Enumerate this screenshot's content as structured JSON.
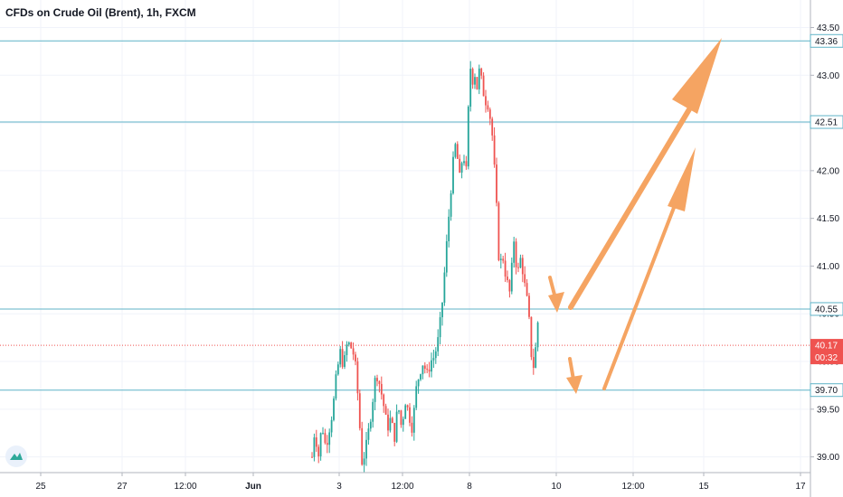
{
  "chart_data": {
    "type": "candlestick",
    "title": "CFDs on Crude Oil (Brent), 1h, FXCM",
    "y_range": [
      38.93,
      43.59
    ],
    "y_ticks": [
      {
        "value": 43.5,
        "label": "43.50"
      },
      {
        "value": 43.0,
        "label": "43.00"
      },
      {
        "value": 42.5,
        "label": "42.50"
      },
      {
        "value": 42.0,
        "label": "42.00"
      },
      {
        "value": 41.5,
        "label": "41.50"
      },
      {
        "value": 41.0,
        "label": "41.00"
      },
      {
        "value": 40.5,
        "label": "40.50"
      },
      {
        "value": 40.0,
        "label": "40.00"
      },
      {
        "value": 39.5,
        "label": "39.50"
      },
      {
        "value": 39.0,
        "label": "39.00"
      }
    ],
    "x_range": [
      0,
      885
    ],
    "x_ticks": [
      {
        "value": 45,
        "label": "25"
      },
      {
        "value": 135,
        "label": "27"
      },
      {
        "value": 205,
        "label": "12:00"
      },
      {
        "value": 280,
        "label": "Jun"
      },
      {
        "value": 375,
        "label": "3"
      },
      {
        "value": 445,
        "label": "12:00"
      },
      {
        "value": 519,
        "label": "8"
      },
      {
        "value": 615,
        "label": "10"
      },
      {
        "value": 700,
        "label": "12:00"
      },
      {
        "value": 778,
        "label": "15"
      },
      {
        "value": 885,
        "label": "17"
      }
    ],
    "levels": [
      {
        "value": 43.36,
        "label": "43.36"
      },
      {
        "value": 42.51,
        "label": "42.51"
      },
      {
        "value": 40.55,
        "label": "40.55"
      },
      {
        "value": 39.7,
        "label": "39.70"
      }
    ],
    "current_price": {
      "value": 40.17,
      "label": "40.17",
      "countdown": "00:32"
    },
    "price_path": [
      [
        345,
        39.0
      ],
      [
        348,
        39.3
      ],
      [
        352,
        39.0
      ],
      [
        356,
        39.35
      ],
      [
        360,
        39.1
      ],
      [
        364,
        39.3
      ],
      [
        368,
        39.5
      ],
      [
        372,
        39.85
      ],
      [
        376,
        40.1
      ],
      [
        380,
        39.95
      ],
      [
        384,
        40.2
      ],
      [
        388,
        40.15
      ],
      [
        392,
        40.05
      ],
      [
        396,
        39.6
      ],
      [
        400,
        38.95
      ],
      [
        404,
        39.05
      ],
      [
        408,
        39.3
      ],
      [
        412,
        39.6
      ],
      [
        416,
        39.9
      ],
      [
        420,
        39.75
      ],
      [
        424,
        39.55
      ],
      [
        428,
        39.3
      ],
      [
        432,
        39.4
      ],
      [
        436,
        39.2
      ],
      [
        440,
        39.55
      ],
      [
        444,
        39.3
      ],
      [
        448,
        39.6
      ],
      [
        452,
        39.45
      ],
      [
        456,
        39.3
      ],
      [
        460,
        39.7
      ],
      [
        464,
        39.9
      ],
      [
        468,
        40.0
      ],
      [
        472,
        39.85
      ],
      [
        476,
        40.0
      ],
      [
        480,
        40.05
      ],
      [
        484,
        40.2
      ],
      [
        488,
        40.5
      ],
      [
        492,
        41.0
      ],
      [
        496,
        41.5
      ],
      [
        500,
        42.0
      ],
      [
        504,
        42.3
      ],
      [
        508,
        41.9
      ],
      [
        512,
        42.2
      ],
      [
        516,
        41.95
      ],
      [
        518,
        42.7
      ],
      [
        520,
        43.1
      ],
      [
        522,
        42.9
      ],
      [
        524,
        43.1
      ],
      [
        527,
        42.85
      ],
      [
        530,
        43.05
      ],
      [
        533,
        42.9
      ],
      [
        536,
        42.75
      ],
      [
        540,
        42.7
      ],
      [
        544,
        42.4
      ],
      [
        548,
        41.8
      ],
      [
        552,
        41.0
      ],
      [
        556,
        41.1
      ],
      [
        560,
        40.85
      ],
      [
        564,
        40.7
      ],
      [
        568,
        41.3
      ],
      [
        572,
        40.9
      ],
      [
        576,
        41.1
      ],
      [
        580,
        40.8
      ],
      [
        584,
        40.55
      ],
      [
        588,
        40.0
      ],
      [
        590,
        39.95
      ],
      [
        593,
        40.2
      ],
      [
        596,
        40.6
      ]
    ]
  }
}
